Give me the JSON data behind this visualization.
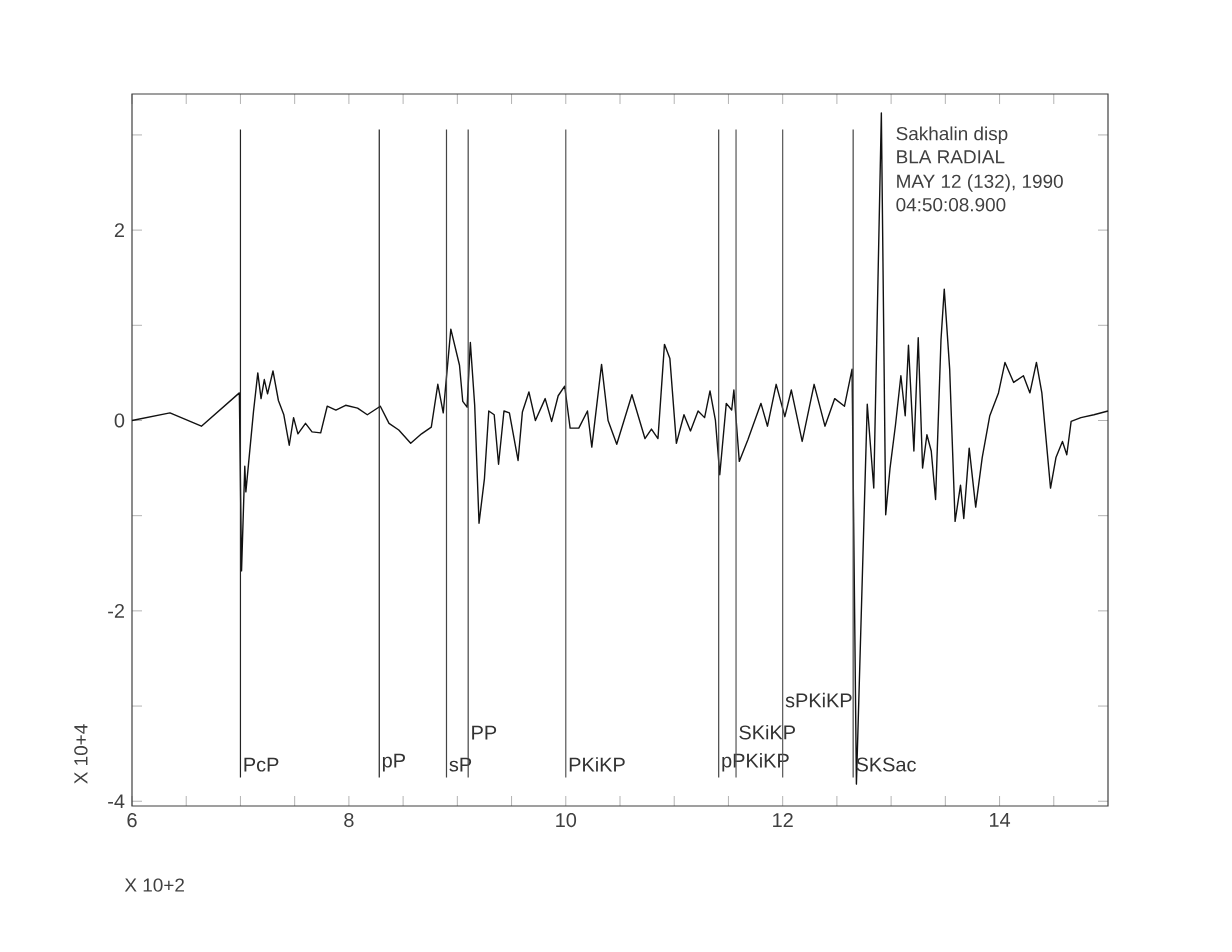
{
  "chart_data": {
    "type": "line",
    "xlabel": "X 10+2",
    "ylabel": "X 10+4",
    "color": "#111111",
    "x": [
      6.0,
      6.35,
      6.64,
      6.99,
      7.01,
      7.04,
      7.05,
      7.12,
      7.16,
      7.19,
      7.22,
      7.25,
      7.3,
      7.35,
      7.4,
      7.45,
      7.49,
      7.53,
      7.6,
      7.66,
      7.74,
      7.8,
      7.88,
      7.97,
      8.08,
      8.17,
      8.29,
      8.37,
      8.46,
      8.57,
      8.67,
      8.76,
      8.82,
      8.87,
      8.94,
      9.02,
      9.05,
      9.09,
      9.12,
      9.16,
      9.2,
      9.25,
      9.29,
      9.34,
      9.38,
      9.43,
      9.48,
      9.56,
      9.6,
      9.66,
      9.72,
      9.81,
      9.87,
      9.93,
      9.99,
      10.04,
      10.12,
      10.2,
      10.24,
      10.33,
      10.39,
      10.47,
      10.61,
      10.73,
      10.79,
      10.85,
      10.91,
      10.96,
      11.02,
      11.09,
      11.15,
      11.22,
      11.28,
      11.33,
      11.38,
      11.42,
      11.48,
      11.53,
      11.55,
      11.6,
      11.68,
      11.8,
      11.86,
      11.94,
      12.02,
      12.08,
      12.18,
      12.29,
      12.39,
      12.48,
      12.57,
      12.64,
      12.68,
      12.78,
      12.84,
      12.91,
      12.95,
      12.99,
      13.04,
      13.09,
      13.13,
      13.16,
      13.21,
      13.25,
      13.29,
      13.33,
      13.37,
      13.41,
      13.46,
      13.49,
      13.54,
      13.59,
      13.64,
      13.67,
      13.72,
      13.78,
      13.84,
      13.91,
      13.99,
      14.05,
      14.13,
      14.22,
      14.28,
      14.34,
      14.39,
      14.47,
      14.52,
      14.58,
      14.62,
      14.66,
      14.75,
      14.87,
      15.0
    ],
    "values": [
      0.0,
      0.08,
      -0.06,
      0.29,
      -1.58,
      -0.48,
      -0.75,
      0.09,
      0.5,
      0.23,
      0.43,
      0.28,
      0.52,
      0.21,
      0.06,
      -0.26,
      0.03,
      -0.14,
      -0.03,
      -0.12,
      -0.13,
      0.15,
      0.11,
      0.16,
      0.13,
      0.06,
      0.15,
      -0.03,
      -0.1,
      -0.24,
      -0.14,
      -0.07,
      0.38,
      0.08,
      0.96,
      0.58,
      0.2,
      0.14,
      0.82,
      0.16,
      -1.08,
      -0.61,
      0.1,
      0.06,
      -0.46,
      0.1,
      0.08,
      -0.42,
      0.09,
      0.3,
      0.0,
      0.23,
      -0.01,
      0.26,
      0.36,
      -0.08,
      -0.08,
      0.1,
      -0.28,
      0.59,
      0.0,
      -0.25,
      0.27,
      -0.19,
      -0.09,
      -0.19,
      0.8,
      0.65,
      -0.24,
      0.06,
      -0.11,
      0.1,
      0.03,
      0.31,
      0.0,
      -0.57,
      0.18,
      0.11,
      0.32,
      -0.43,
      -0.2,
      0.18,
      -0.06,
      0.38,
      0.04,
      0.32,
      -0.22,
      0.38,
      -0.06,
      0.23,
      0.15,
      0.54,
      -3.82,
      0.17,
      -0.71,
      3.23,
      -0.99,
      -0.5,
      -0.05,
      0.47,
      0.05,
      0.79,
      -0.32,
      0.87,
      -0.5,
      -0.15,
      -0.32,
      -0.83,
      0.85,
      1.38,
      0.54,
      -1.06,
      -0.68,
      -1.03,
      -0.29,
      -0.91,
      -0.39,
      0.05,
      0.29,
      0.61,
      0.4,
      0.47,
      0.29,
      0.61,
      0.29,
      -0.71,
      -0.39,
      -0.22,
      -0.36,
      -0.01,
      0.03,
      0.06,
      0.1
    ],
    "xlim": [
      6,
      15
    ],
    "ylim": [
      -4.05,
      3.43
    ],
    "xticks": [
      6,
      {
        "value": 6.5,
        "label": null
      },
      {
        "value": 7,
        "label": null
      },
      {
        "value": 7.5,
        "label": null
      },
      8,
      {
        "value": 8.5,
        "label": null
      },
      {
        "value": 9,
        "label": null
      },
      {
        "value": 9.5,
        "label": null
      },
      10,
      {
        "value": 10.5,
        "label": null
      },
      {
        "value": 11,
        "label": null
      },
      {
        "value": 11.5,
        "label": null
      },
      12,
      {
        "value": 12.5,
        "label": null
      },
      {
        "value": 13,
        "label": null
      },
      {
        "value": 13.5,
        "label": null
      },
      14,
      {
        "value": 14.5,
        "label": null
      }
    ],
    "yticks": [
      -4,
      {
        "value": -3,
        "label": null
      },
      -2,
      {
        "value": -1,
        "label": null
      },
      0,
      {
        "value": 1,
        "label": null
      },
      2,
      {
        "value": 3,
        "label": null
      }
    ],
    "ref_lines": [
      {
        "axis": "x",
        "value": 7.0,
        "label": "PcP",
        "color": "#222222"
      },
      {
        "axis": "x",
        "value": 8.28,
        "label": "pP",
        "color": "#222222"
      },
      {
        "axis": "x",
        "value": 8.9,
        "label": "sP",
        "color": "#444444"
      },
      {
        "axis": "x",
        "value": 9.1,
        "label": "PP",
        "color": "#444444"
      },
      {
        "axis": "x",
        "value": 10.0,
        "label": "PKiKP",
        "color": "#555555"
      },
      {
        "axis": "x",
        "value": 11.41,
        "label": "pPKiKP",
        "color": "#444444"
      },
      {
        "axis": "x",
        "value": 11.57,
        "label": "SKiKP",
        "color": "#555555"
      },
      {
        "axis": "x",
        "value": 12.0,
        "label": "sPKiKP",
        "color": "#555555"
      },
      {
        "axis": "x",
        "value": 12.65,
        "label": "SKSac",
        "color": "#444444"
      }
    ],
    "annotations": [
      "Sakhalin disp",
      "BLA  RADIAL",
      "MAY 12 (132), 1990",
      "04:50:08.900"
    ]
  }
}
